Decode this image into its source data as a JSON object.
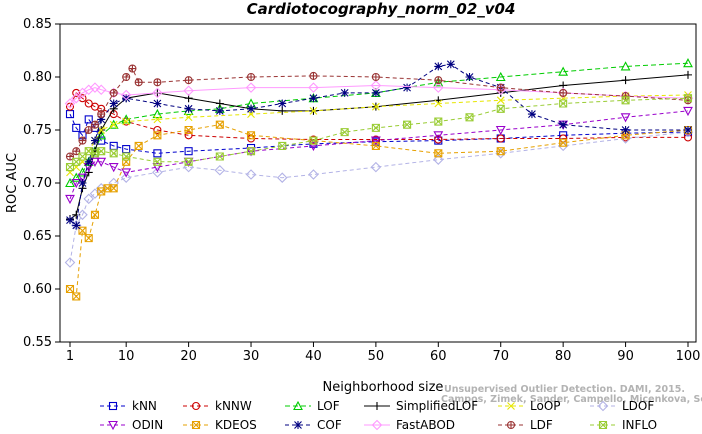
{
  "chart_data": {
    "type": "line",
    "title": "Cardiotocography_norm_02_v04",
    "xlabel": "Neighborhood size",
    "ylabel": "ROC AUC",
    "xlim": [
      1,
      100
    ],
    "ylim": [
      0.55,
      0.85
    ],
    "xticks": [
      "1",
      "10",
      "20",
      "30",
      "40",
      "50",
      "60",
      "70",
      "80",
      "90",
      "100"
    ],
    "yticks": [
      "0.55",
      "0.60",
      "0.65",
      "0.70",
      "0.75",
      "0.80",
      "0.85"
    ],
    "grid": false,
    "legend_position": "bottom",
    "watermark": [
      "Unsupervised Outlier Detection. DAMI, 2015.",
      "Campos, Zimek, Sander, Campello, Micenkova, Schubert, Assent, Houle"
    ],
    "series": [
      {
        "name": "kNN",
        "color": "#0000cc",
        "marker": "square",
        "dash": "4,3",
        "x": [
          1,
          2,
          3,
          4,
          5,
          6,
          8,
          10,
          15,
          20,
          30,
          40,
          50,
          60,
          70,
          80,
          90,
          100
        ],
        "y": [
          0.765,
          0.752,
          0.745,
          0.76,
          0.752,
          0.74,
          0.735,
          0.732,
          0.728,
          0.73,
          0.733,
          0.737,
          0.739,
          0.74,
          0.742,
          0.745,
          0.747,
          0.748
        ]
      },
      {
        "name": "kNNW",
        "color": "#cc0000",
        "marker": "circle",
        "dash": "4,3",
        "x": [
          1,
          2,
          3,
          4,
          5,
          6,
          8,
          10,
          15,
          20,
          30,
          40,
          50,
          60,
          70,
          80,
          90,
          100
        ],
        "y": [
          0.772,
          0.785,
          0.78,
          0.775,
          0.772,
          0.77,
          0.765,
          0.758,
          0.75,
          0.745,
          0.742,
          0.741,
          0.741,
          0.741,
          0.742,
          0.742,
          0.743,
          0.743
        ]
      },
      {
        "name": "LOF",
        "color": "#00cc00",
        "marker": "triangle",
        "dash": "5,3",
        "x": [
          1,
          2,
          3,
          4,
          5,
          6,
          8,
          10,
          15,
          20,
          25,
          30,
          40,
          50,
          60,
          70,
          80,
          90,
          100
        ],
        "y": [
          0.7,
          0.705,
          0.71,
          0.72,
          0.73,
          0.745,
          0.755,
          0.76,
          0.765,
          0.768,
          0.77,
          0.775,
          0.78,
          0.785,
          0.795,
          0.8,
          0.805,
          0.81,
          0.813
        ]
      },
      {
        "name": "SimplifiedLOF",
        "color": "#000000",
        "marker": "plus",
        "dash": "",
        "x": [
          1,
          2,
          3,
          4,
          5,
          6,
          8,
          10,
          15,
          20,
          25,
          30,
          35,
          40,
          50,
          60,
          70,
          80,
          90,
          100
        ],
        "y": [
          0.666,
          0.67,
          0.695,
          0.71,
          0.73,
          0.75,
          0.77,
          0.78,
          0.785,
          0.78,
          0.775,
          0.77,
          0.768,
          0.768,
          0.772,
          0.778,
          0.785,
          0.792,
          0.797,
          0.802
        ]
      },
      {
        "name": "LoOP",
        "color": "#e6e600",
        "marker": "x",
        "dash": "4,3",
        "x": [
          1,
          2,
          3,
          4,
          5,
          6,
          8,
          10,
          15,
          20,
          30,
          40,
          50,
          60,
          70,
          80,
          90,
          100
        ],
        "y": [
          0.71,
          0.715,
          0.72,
          0.73,
          0.74,
          0.75,
          0.755,
          0.758,
          0.76,
          0.762,
          0.765,
          0.768,
          0.772,
          0.775,
          0.778,
          0.78,
          0.782,
          0.783
        ]
      },
      {
        "name": "LDOF",
        "color": "#b3b3e6",
        "marker": "diamond",
        "dash": "4,3",
        "x": [
          1,
          2,
          3,
          4,
          5,
          6,
          8,
          10,
          15,
          20,
          25,
          30,
          35,
          40,
          50,
          60,
          70,
          80,
          90,
          100
        ],
        "y": [
          0.625,
          0.66,
          0.67,
          0.685,
          0.69,
          0.695,
          0.7,
          0.705,
          0.71,
          0.715,
          0.712,
          0.708,
          0.705,
          0.708,
          0.715,
          0.722,
          0.728,
          0.735,
          0.742,
          0.748
        ]
      },
      {
        "name": "ODIN",
        "color": "#9900cc",
        "marker": "triangle-down",
        "dash": "4,3",
        "x": [
          1,
          2,
          3,
          4,
          5,
          6,
          8,
          10,
          15,
          20,
          30,
          40,
          50,
          60,
          70,
          80,
          90,
          100
        ],
        "y": [
          0.685,
          0.7,
          0.705,
          0.715,
          0.72,
          0.72,
          0.715,
          0.71,
          0.715,
          0.72,
          0.73,
          0.735,
          0.74,
          0.745,
          0.75,
          0.755,
          0.762,
          0.768
        ]
      },
      {
        "name": "KDEOS",
        "color": "#e6a000",
        "marker": "square-x",
        "dash": "4,3",
        "x": [
          1,
          2,
          3,
          4,
          5,
          6,
          7,
          8,
          10,
          12,
          15,
          20,
          25,
          30,
          40,
          50,
          60,
          70,
          80,
          90,
          100
        ],
        "y": [
          0.6,
          0.593,
          0.655,
          0.648,
          0.67,
          0.692,
          0.695,
          0.695,
          0.72,
          0.735,
          0.745,
          0.75,
          0.755,
          0.745,
          0.74,
          0.735,
          0.728,
          0.73,
          0.738,
          0.745,
          0.75
        ]
      },
      {
        "name": "COF",
        "color": "#000080",
        "marker": "asterisk",
        "dash": "4,3",
        "x": [
          1,
          2,
          3,
          4,
          5,
          6,
          8,
          10,
          15,
          20,
          25,
          30,
          35,
          40,
          45,
          50,
          55,
          60,
          62,
          65,
          70,
          75,
          80,
          90,
          100
        ],
        "y": [
          0.665,
          0.66,
          0.7,
          0.72,
          0.74,
          0.76,
          0.775,
          0.78,
          0.775,
          0.77,
          0.768,
          0.77,
          0.775,
          0.78,
          0.785,
          0.785,
          0.79,
          0.81,
          0.812,
          0.8,
          0.79,
          0.765,
          0.755,
          0.75,
          0.75
        ]
      },
      {
        "name": "FastABOD",
        "color": "#ff99ff",
        "marker": "diamond",
        "dash": "",
        "x": [
          1,
          2,
          3,
          4,
          5,
          6,
          8,
          10,
          15,
          20,
          30,
          40,
          50,
          60,
          70,
          80,
          90,
          100
        ],
        "y": [
          0.775,
          0.78,
          0.785,
          0.788,
          0.79,
          0.788,
          0.785,
          0.783,
          0.785,
          0.787,
          0.79,
          0.79,
          0.792,
          0.79,
          0.788,
          0.785,
          0.782,
          0.78
        ]
      },
      {
        "name": "LDF",
        "color": "#993333",
        "marker": "circle-plus",
        "dash": "4,3",
        "x": [
          1,
          2,
          3,
          4,
          5,
          6,
          8,
          10,
          11,
          12,
          15,
          20,
          30,
          40,
          50,
          60,
          70,
          80,
          90,
          100
        ],
        "y": [
          0.725,
          0.73,
          0.74,
          0.75,
          0.755,
          0.765,
          0.785,
          0.8,
          0.808,
          0.795,
          0.795,
          0.797,
          0.8,
          0.801,
          0.8,
          0.797,
          0.79,
          0.785,
          0.782,
          0.778
        ]
      },
      {
        "name": "INFLO",
        "color": "#99cc33",
        "marker": "square-x",
        "dash": "4,3",
        "x": [
          1,
          2,
          3,
          4,
          5,
          6,
          8,
          10,
          15,
          20,
          25,
          30,
          35,
          40,
          45,
          50,
          55,
          60,
          65,
          70,
          80,
          90,
          100
        ],
        "y": [
          0.715,
          0.72,
          0.725,
          0.73,
          0.728,
          0.73,
          0.728,
          0.725,
          0.72,
          0.72,
          0.725,
          0.73,
          0.735,
          0.74,
          0.748,
          0.752,
          0.755,
          0.758,
          0.762,
          0.77,
          0.775,
          0.778,
          0.78
        ]
      }
    ]
  }
}
